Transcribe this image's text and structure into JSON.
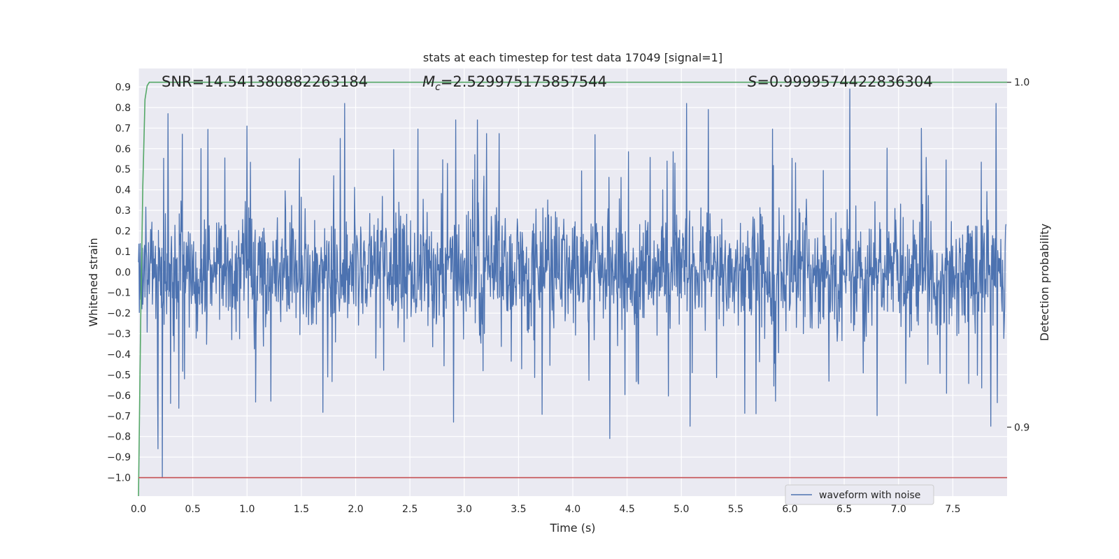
{
  "chart_data": {
    "type": "line",
    "title": "stats at each timestep for test data 17049 [signal=1]",
    "xlabel": "Time (s)",
    "ylabel": "Whitened strain",
    "y2label": "Detection probability",
    "xlim": [
      0.0,
      8.0
    ],
    "ylim": [
      -1.09,
      0.99
    ],
    "y2lim": [
      0.88,
      1.004
    ],
    "x_ticks": [
      0.0,
      0.5,
      1.0,
      1.5,
      2.0,
      2.5,
      3.0,
      3.5,
      4.0,
      4.5,
      5.0,
      5.5,
      6.0,
      6.5,
      7.0,
      7.5
    ],
    "x_tick_labels": [
      "0.0",
      "0.5",
      "1.0",
      "1.5",
      "2.0",
      "2.5",
      "3.0",
      "3.5",
      "4.0",
      "4.5",
      "5.0",
      "5.5",
      "6.0",
      "6.5",
      "7.0",
      "7.5"
    ],
    "y_ticks": [
      0.9,
      0.8,
      0.7,
      0.6,
      0.5,
      0.4,
      0.3,
      0.2,
      0.1,
      0.0,
      -0.1,
      -0.2,
      -0.3,
      -0.4,
      -0.5,
      -0.6,
      -0.7,
      -0.8,
      -0.9,
      -1.0
    ],
    "y_tick_labels": [
      "0.9",
      "0.8",
      "0.7",
      "0.6",
      "0.5",
      "0.4",
      "0.3",
      "0.2",
      "0.1",
      "0.0",
      "−0.1",
      "−0.2",
      "−0.3",
      "−0.4",
      "−0.5",
      "−0.6",
      "−0.7",
      "−0.8",
      "−0.9",
      "−1.0"
    ],
    "y2_ticks": [
      1.0,
      0.9
    ],
    "y2_tick_labels": [
      "1.0",
      "0.9"
    ],
    "grid": true,
    "legend": {
      "entries": [
        "waveform with noise"
      ],
      "placement": "lower-right"
    },
    "annotations": {
      "snr": "SNR=14.541380882263184",
      "mc_symbol": "M",
      "mc_subscript": "c",
      "mc_value": "=2.529975175857544",
      "s_symbol": "S",
      "s_value": "=0.9999574422836304"
    },
    "series": [
      {
        "name": "waveform with noise",
        "axis": "left",
        "color": "#4c72b0",
        "description_values": {
          "sample_count": 2000,
          "typical_envelope": [
            -0.3,
            0.3
          ],
          "notable_peaks": [
            {
              "x": 0.27,
              "y": 0.77
            },
            {
              "x": 1.0,
              "y": 0.71
            },
            {
              "x": 1.9,
              "y": 0.82
            },
            {
              "x": 2.92,
              "y": 0.74
            },
            {
              "x": 3.12,
              "y": 0.74
            },
            {
              "x": 5.05,
              "y": 0.82
            },
            {
              "x": 5.25,
              "y": 0.79
            },
            {
              "x": 6.55,
              "y": 0.89
            },
            {
              "x": 7.9,
              "y": 0.82
            }
          ],
          "notable_troughs": [
            {
              "x": 0.22,
              "y": -1.0
            },
            {
              "x": 0.18,
              "y": -0.86
            },
            {
              "x": 2.9,
              "y": -0.73
            },
            {
              "x": 4.34,
              "y": -0.81
            },
            {
              "x": 5.08,
              "y": -0.75
            },
            {
              "x": 7.85,
              "y": -0.75
            }
          ]
        }
      },
      {
        "name": "",
        "axis": "right",
        "color": "#55a868",
        "x": [
          0.0,
          0.02,
          0.04,
          0.06,
          0.08,
          0.1,
          0.15,
          0.2,
          8.0
        ],
        "y": [
          0.88,
          0.93,
          0.97,
          0.995,
          0.999,
          1.0,
          1.0,
          1.0,
          1.0
        ]
      },
      {
        "name": "",
        "axis": "left",
        "color": "#c44e52",
        "x": [
          0.0,
          8.0
        ],
        "y": [
          -1.0,
          -1.0
        ]
      }
    ]
  }
}
